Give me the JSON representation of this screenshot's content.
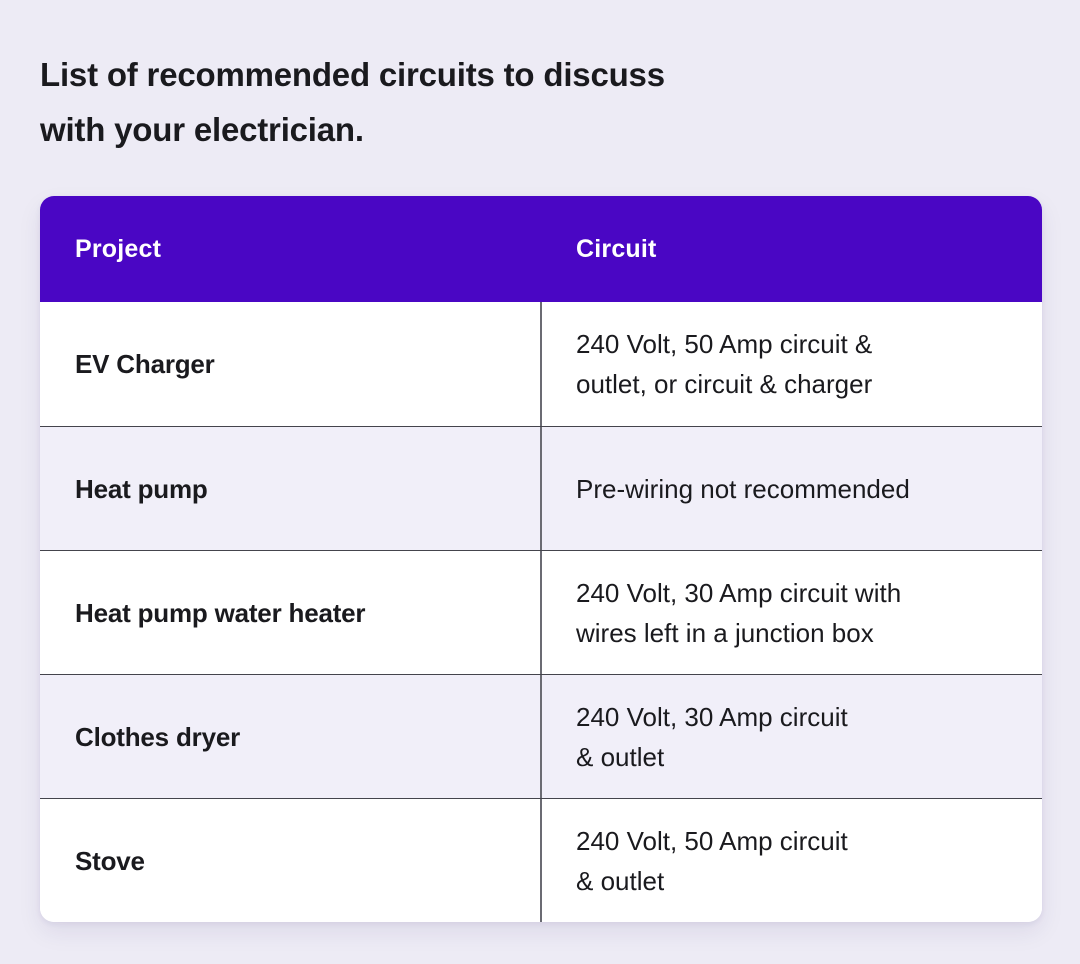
{
  "page": {
    "background_color": "#EDEBF5",
    "title": "List of recommended circuits to discuss\nwith your electrician."
  },
  "table": {
    "accent_color": "#4A06C4",
    "header_text_color": "#FFFFFF",
    "alt_row_color": "#F1EFF9",
    "divider_color": "#44444C",
    "header": {
      "columns": [
        "Project",
        "Circuit"
      ]
    },
    "rows": [
      {
        "project": "EV Charger",
        "circuit": "240 Volt, 50 Amp circuit &\noutlet, or circuit & charger"
      },
      {
        "project": "Heat pump",
        "circuit": "Pre-wiring not recommended"
      },
      {
        "project": "Heat pump water heater",
        "circuit": "240 Volt, 30 Amp circuit with\nwires left in a junction box"
      },
      {
        "project": "Clothes dryer",
        "circuit": "240 Volt, 30 Amp circuit\n& outlet"
      },
      {
        "project": "Stove",
        "circuit": "240 Volt, 50 Amp circuit\n& outlet"
      }
    ]
  }
}
